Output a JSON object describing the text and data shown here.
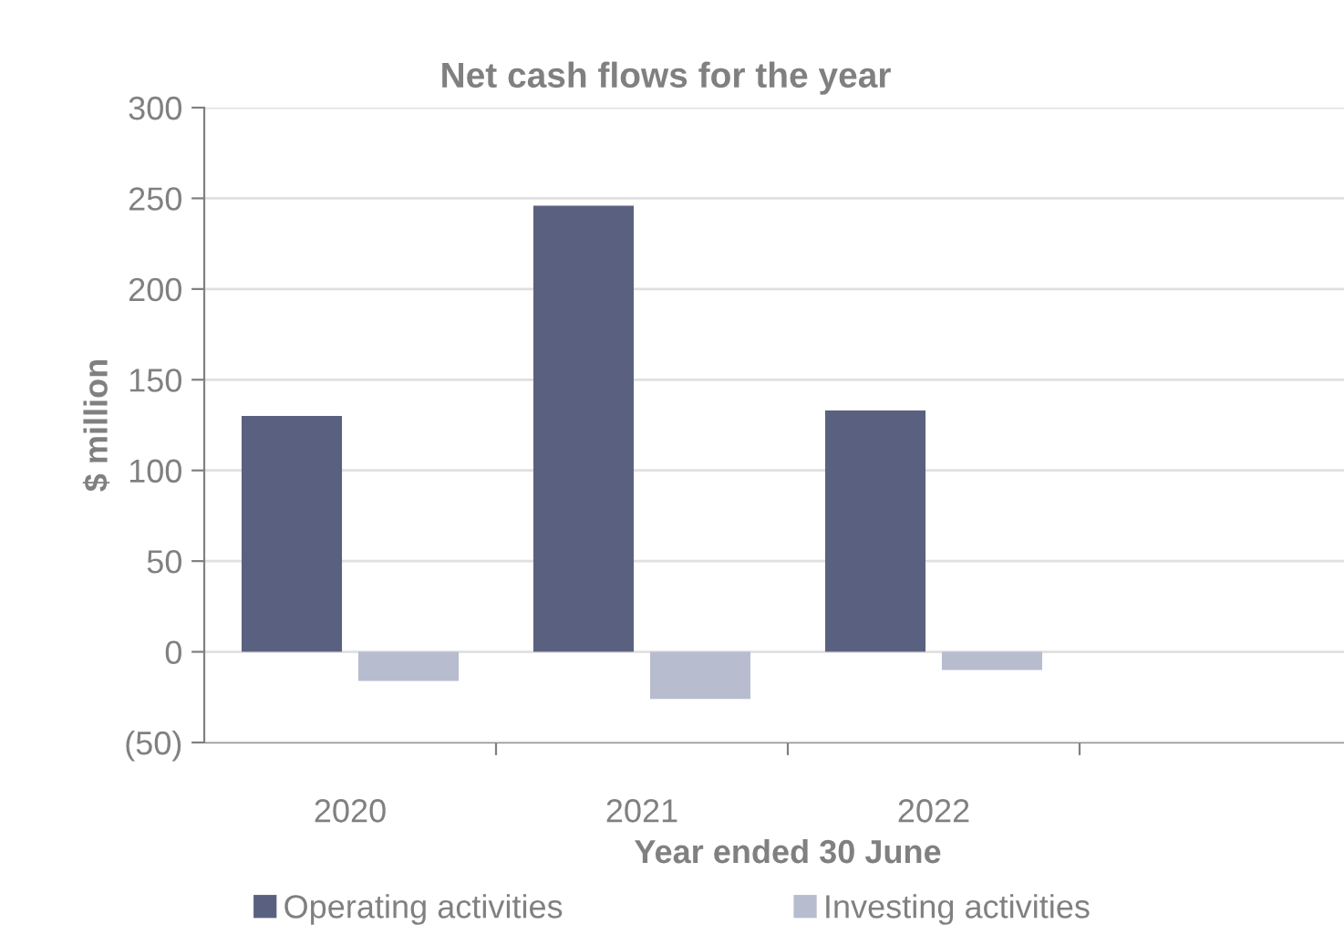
{
  "chart_data": {
    "type": "bar",
    "title": "Net cash flows for the year",
    "xlabel": "Year ended 30 June",
    "ylabel": "$ million",
    "categories": [
      "2020",
      "2021",
      "2022",
      null
    ],
    "series": [
      {
        "name": "Operating activities",
        "color": "#5a6180",
        "values": [
          130,
          246,
          133,
          null
        ]
      },
      {
        "name": "Investing activities",
        "color": "#b8bccf",
        "values": [
          -16,
          -26,
          -10,
          null
        ]
      }
    ],
    "ylim": [
      -50,
      300
    ],
    "yticks": [
      {
        "value": -50,
        "label": "(50)"
      },
      0,
      50,
      100,
      150,
      200,
      250,
      300
    ],
    "grid": "y",
    "legend": "bottom"
  }
}
